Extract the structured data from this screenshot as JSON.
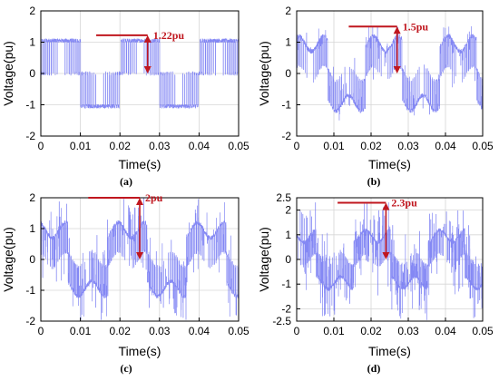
{
  "colors": {
    "waveform": "#6f73f2",
    "annotation": "#c0171f",
    "grid": "#d6d6d6",
    "axis": "#000000"
  },
  "chart_data": [
    {
      "type": "line",
      "panel_label": "(a)",
      "xlabel": "Time(s)",
      "ylabel": "Voltage(pu)",
      "xlim": [
        0,
        0.05
      ],
      "ylim": [
        -2,
        2
      ],
      "x_ticks": [
        0,
        0.01,
        0.02,
        0.03,
        0.04,
        0.05
      ],
      "y_ticks": [
        -2,
        -1,
        0,
        1,
        2
      ],
      "x_tick_labels": [
        "0",
        "0.01",
        "0.02",
        "0.03",
        "0.04",
        "0.05"
      ],
      "y_tick_labels": [
        "-2",
        "-1",
        "0",
        "1",
        "2"
      ],
      "grid": true,
      "series": [
        {
          "levels": [
            0,
            1.0
          ],
          "fundamental_amplitude": 1.0,
          "switching_frequency_hz": 2000
        }
      ],
      "annotation": {
        "text": "1.22pu",
        "value": 1.22,
        "x": 0.027
      }
    },
    {
      "type": "line",
      "panel_label": "(b)",
      "xlabel": "Time(s)",
      "ylabel": "Voltage(pu)",
      "xlim": [
        0,
        0.05
      ],
      "ylim": [
        -2,
        2
      ],
      "x_ticks": [
        0,
        0.01,
        0.02,
        0.03,
        0.04,
        0.05
      ],
      "y_ticks": [
        -2,
        -1,
        0,
        1,
        2
      ],
      "x_tick_labels": [
        "0",
        "0.01",
        "0.02",
        "0.03",
        "0.04",
        "0.05"
      ],
      "y_tick_labels": [
        "-2",
        "-1",
        "0",
        "1",
        "2"
      ],
      "grid": true,
      "series": [
        {
          "levels": [
            0,
            1.0
          ],
          "fundamental_amplitude": 1.0,
          "switching_frequency_hz": 2000
        }
      ],
      "annotation": {
        "text": "1.5pu",
        "value": 1.5,
        "x": 0.027
      }
    },
    {
      "type": "line",
      "panel_label": "(c)",
      "xlabel": "Time(s)",
      "ylabel": "Voltage(pu)",
      "xlim": [
        0,
        0.05
      ],
      "ylim": [
        -2,
        2
      ],
      "x_ticks": [
        0,
        0.01,
        0.02,
        0.03,
        0.04,
        0.05
      ],
      "y_ticks": [
        -2,
        -1,
        0,
        1,
        2
      ],
      "x_tick_labels": [
        "0",
        "0.01",
        "0.02",
        "0.03",
        "0.04",
        "0.05"
      ],
      "y_tick_labels": [
        "-2",
        "-1",
        "0",
        "1",
        "2"
      ],
      "grid": true,
      "series": [
        {
          "levels": [
            0,
            1.0
          ],
          "fundamental_amplitude": 1.0,
          "switching_frequency_hz": 2000
        }
      ],
      "annotation": {
        "text": "2pu",
        "value": 2.0,
        "x": 0.025
      }
    },
    {
      "type": "line",
      "panel_label": "(d)",
      "xlabel": "Time(s)",
      "ylabel": "Voltage(pu)",
      "xlim": [
        0,
        0.05
      ],
      "ylim": [
        -2.5,
        2.5
      ],
      "x_ticks": [
        0,
        0.01,
        0.02,
        0.03,
        0.04,
        0.05
      ],
      "y_ticks": [
        -2.5,
        -2,
        -1,
        0,
        1,
        2,
        2.5
      ],
      "x_tick_labels": [
        "0",
        "0.01",
        "0.02",
        "0.03",
        "0.04",
        "0.05"
      ],
      "y_tick_labels": [
        "-2.5",
        "-2",
        "-1",
        "0",
        "1",
        "2",
        "2.5"
      ],
      "grid": true,
      "series": [
        {
          "levels": [
            0,
            1.0
          ],
          "fundamental_amplitude": 1.0,
          "switching_frequency_hz": 2000
        }
      ],
      "annotation": {
        "text": "2.3pu",
        "value": 2.3,
        "x": 0.024
      }
    }
  ]
}
